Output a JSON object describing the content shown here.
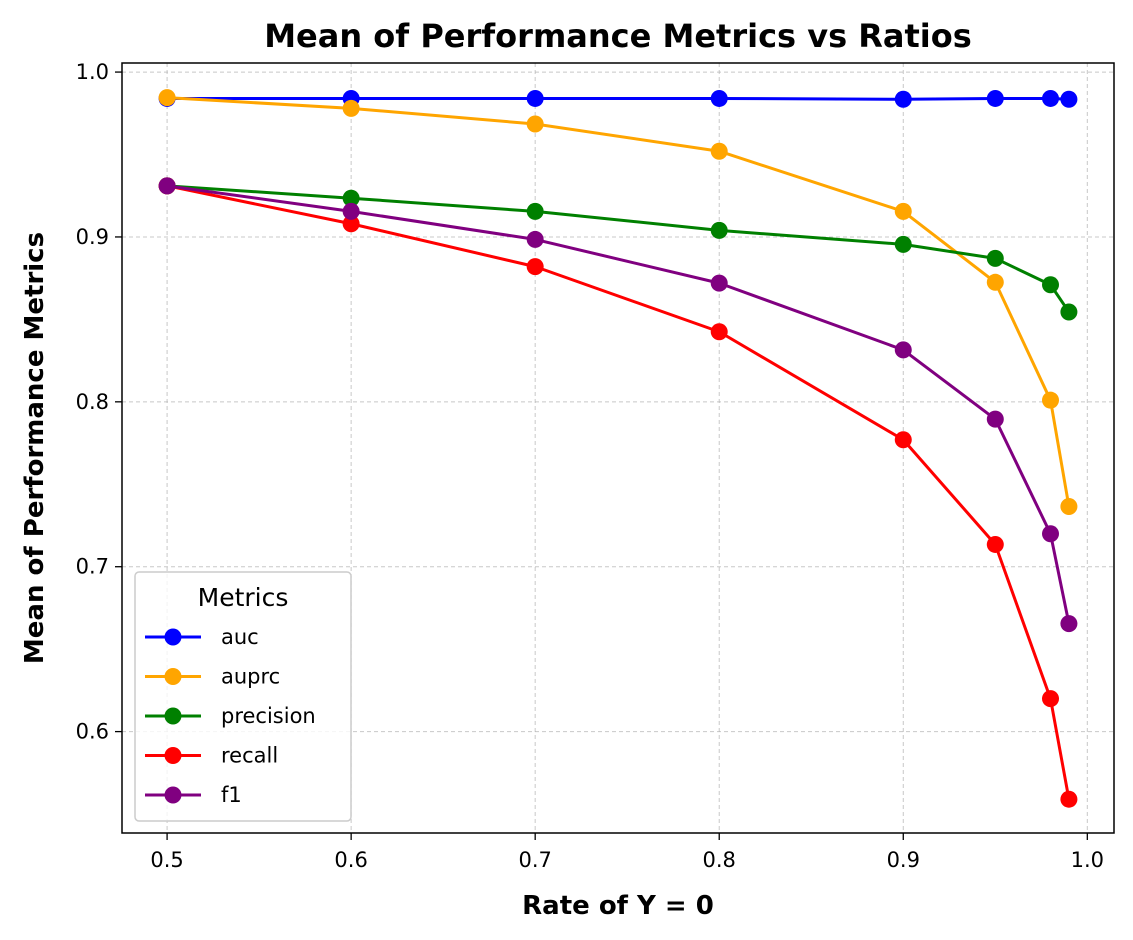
{
  "chart_data": {
    "type": "line",
    "title": "Mean of Performance Metrics vs Ratios",
    "xlabel": "Rate of Y = 0",
    "ylabel": "Mean of Performance Metrics",
    "x": [
      0.5,
      0.6,
      0.7,
      0.8,
      0.9,
      0.95,
      0.98,
      0.99
    ],
    "xlim": [
      0.4755,
      1.0145
    ],
    "ylim": [
      0.5385,
      1.0055
    ],
    "xticks": [
      0.5,
      0.6,
      0.7,
      0.8,
      0.9,
      1.0
    ],
    "xtick_labels": [
      "0.5",
      "0.6",
      "0.7",
      "0.8",
      "0.9",
      "1.0"
    ],
    "yticks": [
      0.6,
      0.7,
      0.8,
      0.9,
      1.0
    ],
    "ytick_labels": [
      "0.6",
      "0.7",
      "0.8",
      "0.9",
      "1.0"
    ],
    "grid": true,
    "legend": {
      "title": "Metrics",
      "placement": "lower-left"
    },
    "series": [
      {
        "name": "auc",
        "color": "#0000ff",
        "values": [
          0.984,
          0.984,
          0.984,
          0.984,
          0.9835,
          0.984,
          0.984,
          0.9835
        ]
      },
      {
        "name": "auprc",
        "color": "#ffa500",
        "values": [
          0.9845,
          0.978,
          0.9685,
          0.952,
          0.9155,
          0.8725,
          0.801,
          0.7365
        ]
      },
      {
        "name": "precision",
        "color": "#008000",
        "values": [
          0.931,
          0.9235,
          0.9155,
          0.904,
          0.8955,
          0.887,
          0.871,
          0.8545
        ]
      },
      {
        "name": "recall",
        "color": "#ff0000",
        "values": [
          0.931,
          0.908,
          0.882,
          0.8425,
          0.777,
          0.7135,
          0.62,
          0.559
        ]
      },
      {
        "name": "f1",
        "color": "#800080",
        "values": [
          0.931,
          0.9155,
          0.8985,
          0.872,
          0.8315,
          0.7895,
          0.72,
          0.6655
        ]
      }
    ]
  }
}
